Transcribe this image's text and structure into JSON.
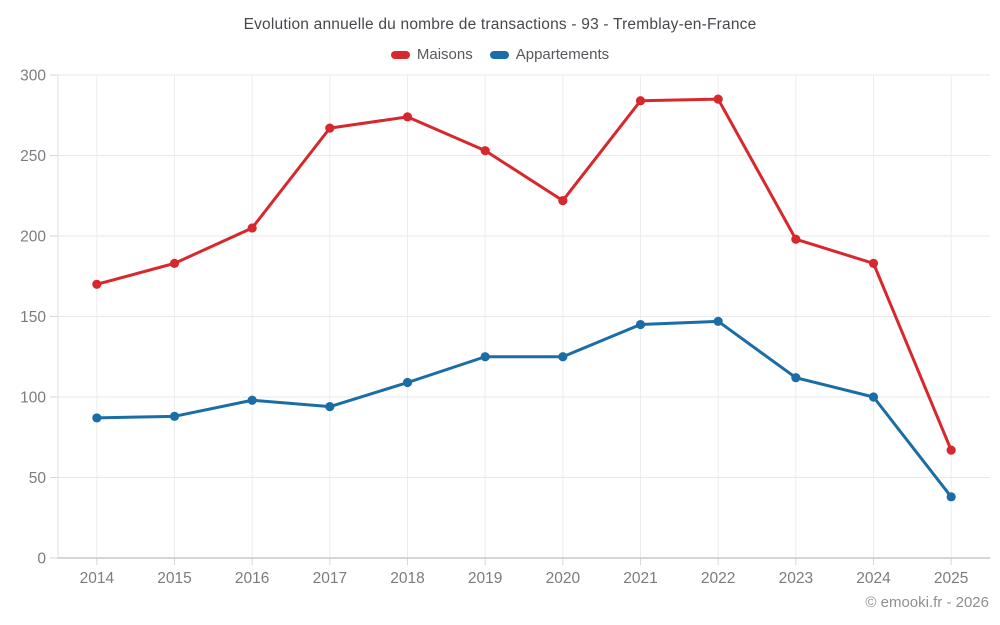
{
  "title": "Evolution annuelle du nombre de transactions - 93 - Tremblay-en-France",
  "footer": "© emooki.fr - 2026",
  "chart_data": {
    "type": "line",
    "title": "Evolution annuelle du nombre de transactions - 93 - Tremblay-en-France",
    "categories": [
      "2014",
      "2015",
      "2016",
      "2017",
      "2018",
      "2019",
      "2020",
      "2021",
      "2022",
      "2023",
      "2024",
      "2025"
    ],
    "series": [
      {
        "name": "Maisons",
        "color": "#d7282e",
        "values": [
          170,
          183,
          205,
          267,
          274,
          253,
          222,
          284,
          285,
          198,
          183,
          67
        ]
      },
      {
        "name": "Appartements",
        "color": "#1a6da6",
        "values": [
          87,
          88,
          98,
          94,
          109,
          125,
          125,
          145,
          147,
          112,
          100,
          38
        ]
      }
    ],
    "xlabel": "",
    "ylabel": "",
    "ylim": [
      0,
      300
    ],
    "ytick_step": 50,
    "yticks": [
      "0",
      "50",
      "100",
      "150",
      "200",
      "250",
      "300"
    ],
    "grid": true,
    "legend_position": "top",
    "marker": "circle"
  },
  "colors": {
    "maisons": "#d7282e",
    "appartements": "#1a6da6",
    "grid_line": "#e9e9e9",
    "axis_line": "#c6c8ca",
    "tick_text": "#797c80"
  }
}
